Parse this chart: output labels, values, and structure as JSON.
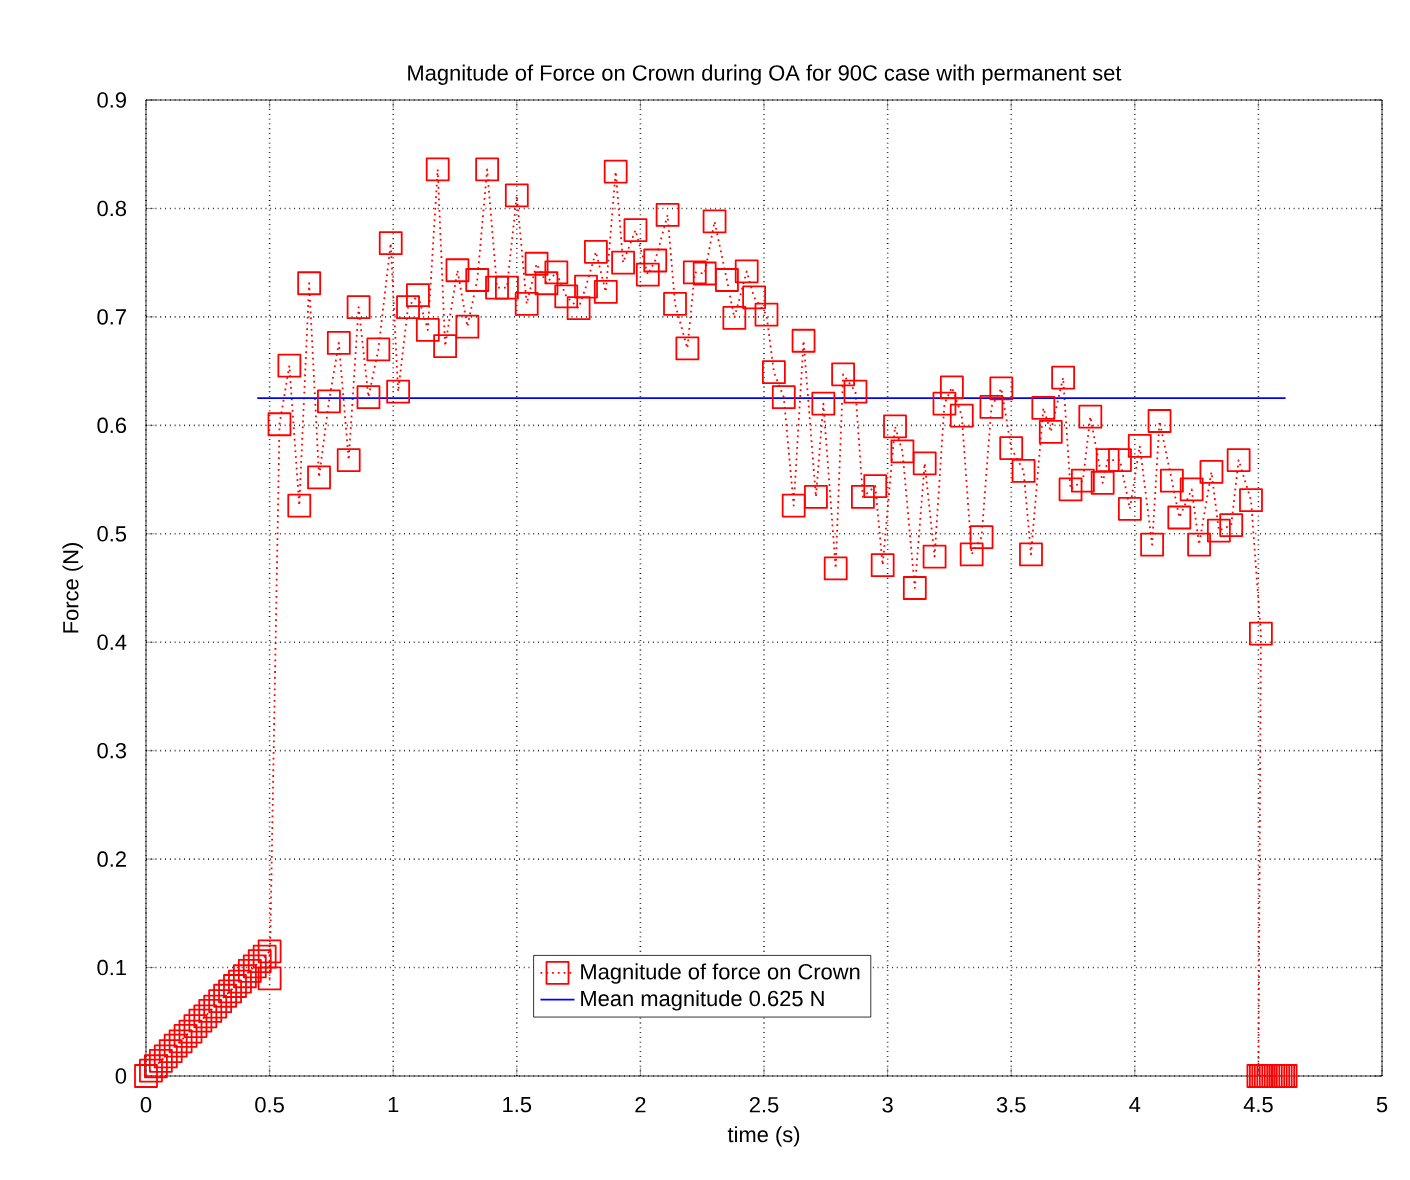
{
  "chart_data": {
    "type": "line",
    "title": "Magnitude of Force on Crown during OA for 90C case with permanent set",
    "xlabel": "time (s)",
    "ylabel": "Force (N)",
    "xlim": [
      0,
      5
    ],
    "ylim": [
      0,
      0.9
    ],
    "xticks": [
      0,
      0.5,
      1,
      1.5,
      2,
      2.5,
      3,
      3.5,
      4,
      4.5,
      5
    ],
    "yticks": [
      0,
      0.1,
      0.2,
      0.3,
      0.4,
      0.5,
      0.6,
      0.7,
      0.8,
      0.9
    ],
    "grid": true,
    "legend": "bottom",
    "series": [
      {
        "name": "Magnitude of force on Crown",
        "color": "#ff0000",
        "marker": "square",
        "line_style": "dotted",
        "x": [
          0,
          0.02,
          0.04,
          0.06,
          0.08,
          0.1,
          0.12,
          0.14,
          0.16,
          0.18,
          0.2,
          0.22,
          0.24,
          0.26,
          0.28,
          0.3,
          0.32,
          0.34,
          0.36,
          0.38,
          0.4,
          0.42,
          0.44,
          0.46,
          0.48,
          0.5,
          0.5,
          0.54,
          0.58,
          0.62,
          0.66,
          0.7,
          0.74,
          0.78,
          0.82,
          0.86,
          0.9,
          0.94,
          0.99,
          1.02,
          1.06,
          1.1,
          1.14,
          1.18,
          1.21,
          1.26,
          1.3,
          1.34,
          1.38,
          1.42,
          1.46,
          1.5,
          1.54,
          1.58,
          1.62,
          1.66,
          1.7,
          1.75,
          1.78,
          1.82,
          1.86,
          1.9,
          1.93,
          1.98,
          2.03,
          2.06,
          2.11,
          2.14,
          2.19,
          2.22,
          2.26,
          2.3,
          2.35,
          2.38,
          2.43,
          2.46,
          2.51,
          2.54,
          2.58,
          2.62,
          2.66,
          2.71,
          2.74,
          2.79,
          2.82,
          2.87,
          2.9,
          2.95,
          2.98,
          3.03,
          3.06,
          3.11,
          3.15,
          3.19,
          3.23,
          3.26,
          3.3,
          3.34,
          3.38,
          3.42,
          3.46,
          3.5,
          3.55,
          3.58,
          3.63,
          3.66,
          3.71,
          3.74,
          3.79,
          3.82,
          3.87,
          3.89,
          3.94,
          3.98,
          4.02,
          4.07,
          4.1,
          4.15,
          4.18,
          4.23,
          4.26,
          4.31,
          4.34,
          4.39,
          4.42,
          4.47,
          4.51,
          4.5,
          4.51,
          4.52,
          4.53,
          4.54,
          4.55,
          4.56,
          4.57,
          4.58,
          4.59,
          4.6,
          4.61
        ],
        "values": [
          0,
          0.005,
          0.009,
          0.014,
          0.018,
          0.023,
          0.028,
          0.032,
          0.037,
          0.041,
          0.046,
          0.051,
          0.055,
          0.06,
          0.064,
          0.069,
          0.074,
          0.078,
          0.083,
          0.087,
          0.092,
          0.097,
          0.101,
          0.106,
          0.11,
          0.115,
          0.09,
          0.601,
          0.655,
          0.526,
          0.731,
          0.552,
          0.622,
          0.676,
          0.568,
          0.709,
          0.626,
          0.67,
          0.768,
          0.631,
          0.709,
          0.72,
          0.688,
          0.836,
          0.673,
          0.743,
          0.691,
          0.734,
          0.836,
          0.727,
          0.727,
          0.812,
          0.712,
          0.749,
          0.731,
          0.741,
          0.719,
          0.708,
          0.728,
          0.76,
          0.723,
          0.834,
          0.75,
          0.78,
          0.739,
          0.752,
          0.794,
          0.712,
          0.671,
          0.741,
          0.74,
          0.788,
          0.734,
          0.699,
          0.742,
          0.718,
          0.702,
          0.649,
          0.626,
          0.526,
          0.678,
          0.534,
          0.62,
          0.468,
          0.647,
          0.631,
          0.534,
          0.544,
          0.471,
          0.599,
          0.576,
          0.45,
          0.565,
          0.479,
          0.62,
          0.635,
          0.609,
          0.481,
          0.497,
          0.617,
          0.634,
          0.579,
          0.558,
          0.481,
          0.616,
          0.594,
          0.644,
          0.541,
          0.549,
          0.608,
          0.547,
          0.568,
          0.568,
          0.523,
          0.581,
          0.49,
          0.604,
          0.549,
          0.515,
          0.541,
          0.49,
          0.557,
          0.503,
          0.508,
          0.568,
          0.531,
          0.408,
          0,
          0,
          0,
          0,
          0,
          0,
          0,
          0,
          0,
          0,
          0,
          0
        ]
      },
      {
        "name": "Mean magnitude 0.625 N",
        "color": "#0000ff",
        "marker": "none",
        "line_style": "solid",
        "x": [
          0.45,
          4.61
        ],
        "values": [
          0.625,
          0.625
        ]
      }
    ]
  }
}
